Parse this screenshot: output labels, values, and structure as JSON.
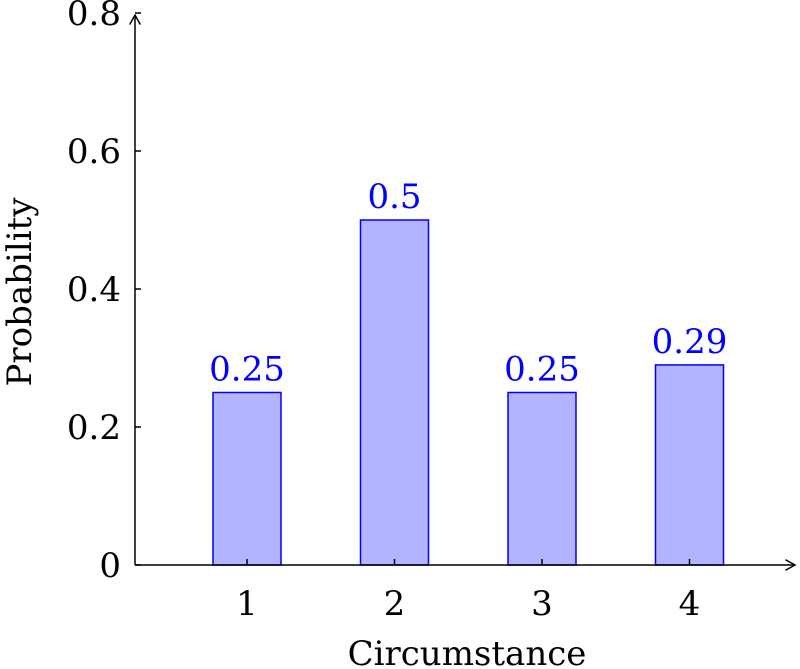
{
  "chart_data": {
    "type": "bar",
    "categories": [
      "1",
      "2",
      "3",
      "4"
    ],
    "values": [
      0.25,
      0.5,
      0.25,
      0.29
    ],
    "data_labels": [
      "0.25",
      "0.5",
      "0.25",
      "0.29"
    ],
    "title": "",
    "xlabel": "Circumstance",
    "ylabel": "Probability",
    "ylim": [
      0,
      0.8
    ],
    "yticks": [
      0,
      0.2,
      0.4,
      0.6,
      0.8
    ],
    "ytick_labels": [
      "0",
      "0.2",
      "0.4",
      "0.6",
      "0.8"
    ],
    "grid": false,
    "legend": "none",
    "colors": {
      "bar_fill": "#b3b3ff",
      "bar_stroke": "#0000ff",
      "label": "#0000ff",
      "axis": "#000000"
    }
  }
}
